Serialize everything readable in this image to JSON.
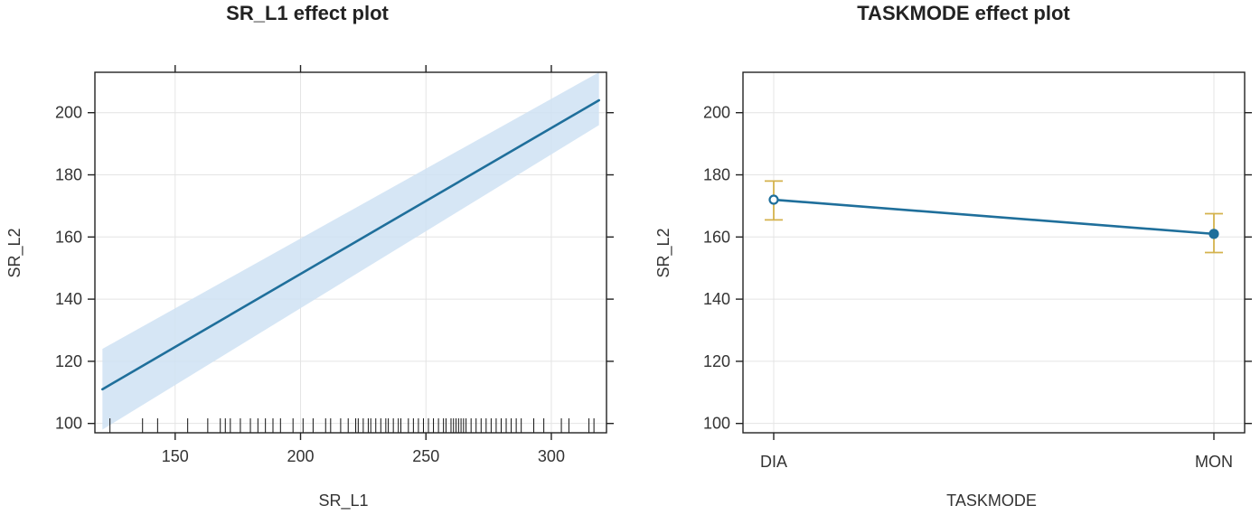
{
  "colors": {
    "line": "#1f6f9b",
    "band": "#cfe2f3",
    "errorbar": "#d4b24c",
    "point": "#1f6f9b"
  },
  "chart_data": [
    {
      "type": "line",
      "title": "SR_L1 effect plot",
      "xlabel": "SR_L1",
      "ylabel": "SR_L2",
      "xlim": [
        118,
        322
      ],
      "ylim": [
        97,
        213
      ],
      "xticks": [
        150,
        200,
        250,
        300
      ],
      "yticks": [
        100,
        120,
        140,
        160,
        180,
        200
      ],
      "fit": {
        "x": [
          121,
          319
        ],
        "y": [
          111,
          204
        ]
      },
      "ci_band": {
        "x": [
          121,
          319
        ],
        "lower": [
          98,
          196
        ],
        "upper": [
          124,
          213
        ]
      },
      "rug": [
        124,
        137,
        143,
        155,
        163,
        168,
        170,
        172,
        176,
        180,
        183,
        186,
        189,
        192,
        197,
        201,
        205,
        210,
        212,
        216,
        219,
        222,
        223,
        225,
        227,
        228,
        230,
        232,
        234,
        235,
        237,
        239,
        240,
        243,
        245,
        247,
        249,
        251,
        253,
        255,
        257,
        258,
        260,
        261,
        262,
        263,
        264,
        265,
        266,
        268,
        270,
        272,
        274,
        276,
        278,
        280,
        282,
        284,
        286,
        288,
        293,
        297,
        304,
        307,
        315,
        317
      ]
    },
    {
      "type": "line",
      "title": "TASKMODE effect plot",
      "xlabel": "TASKMODE",
      "ylabel": "SR_L2",
      "ylim": [
        97,
        213
      ],
      "yticks": [
        100,
        120,
        140,
        160,
        180,
        200
      ],
      "categories": [
        "DIA",
        "MON"
      ],
      "values": [
        172,
        161
      ],
      "lower": [
        165.5,
        155
      ],
      "upper": [
        178,
        167.5
      ]
    }
  ]
}
